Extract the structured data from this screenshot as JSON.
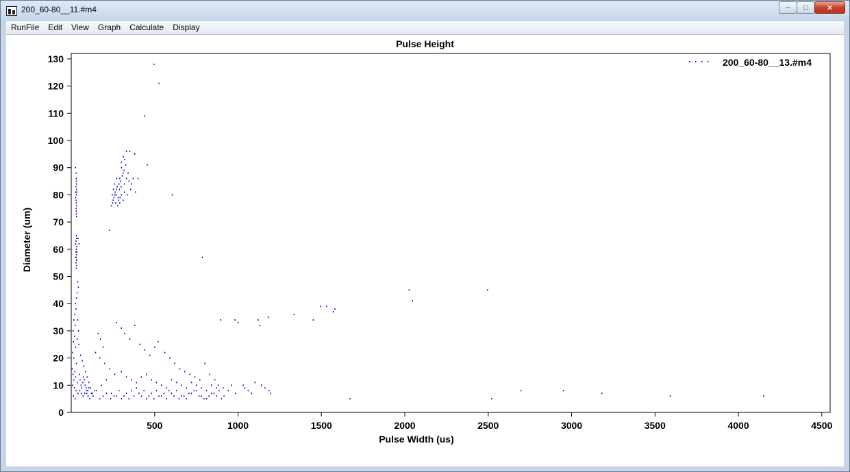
{
  "window": {
    "title": "200_60-80__11.#m4",
    "buttons": {
      "minimize": "–",
      "maximize": "□",
      "close": "✕"
    }
  },
  "menu": [
    "RunFile",
    "Edit",
    "View",
    "Graph",
    "Calculate",
    "Display"
  ],
  "chart_data": {
    "type": "scatter",
    "title": "Pulse Height",
    "xlabel": "Pulse Width (us)",
    "ylabel": "Diameter (um)",
    "xlim": [
      0,
      4550
    ],
    "ylim": [
      0,
      132
    ],
    "xticks": [
      500,
      1000,
      1500,
      2000,
      2500,
      3000,
      3500,
      4000,
      4500
    ],
    "yticks": [
      0,
      10,
      20,
      30,
      40,
      50,
      60,
      70,
      80,
      90,
      100,
      110,
      120,
      130
    ],
    "legend_position": "top-right",
    "grid": false,
    "series": [
      {
        "name": "200_60-80__13.#m4",
        "color": "#0000cc",
        "points": [
          [
            495,
            128
          ],
          [
            525,
            121
          ],
          [
            440,
            109
          ],
          [
            605,
            80
          ],
          [
            785,
            57
          ],
          [
            230,
            67
          ],
          [
            455,
            91
          ],
          [
            330,
            96
          ],
          [
            350,
            96
          ],
          [
            380,
            95
          ],
          [
            400,
            86
          ],
          [
            320,
            93
          ],
          [
            300,
            90
          ],
          [
            310,
            88
          ],
          [
            290,
            86
          ],
          [
            285,
            84
          ],
          [
            270,
            82
          ],
          [
            260,
            80
          ],
          [
            255,
            79
          ],
          [
            250,
            78
          ],
          [
            262,
            81
          ],
          [
            275,
            83
          ],
          [
            268,
            80
          ],
          [
            280,
            79
          ],
          [
            295,
            85
          ],
          [
            305,
            87
          ],
          [
            315,
            89
          ],
          [
            325,
            91
          ],
          [
            340,
            88
          ],
          [
            345,
            85
          ],
          [
            360,
            84
          ],
          [
            355,
            82
          ],
          [
            370,
            86
          ],
          [
            385,
            81
          ],
          [
            300,
            80
          ],
          [
            310,
            78
          ],
          [
            290,
            77
          ],
          [
            278,
            76
          ],
          [
            265,
            77
          ],
          [
            245,
            80
          ],
          [
            252,
            82
          ],
          [
            258,
            84
          ],
          [
            272,
            86
          ],
          [
            288,
            82
          ],
          [
            298,
            83
          ],
          [
            318,
            84
          ],
          [
            330,
            86
          ],
          [
            240,
            76
          ],
          [
            248,
            77
          ],
          [
            282,
            78
          ],
          [
            292,
            79
          ],
          [
            335,
            80
          ],
          [
            318,
            81
          ],
          [
            300,
            92
          ],
          [
            312,
            94
          ],
          [
            25,
            90
          ],
          [
            28,
            88
          ],
          [
            30,
            85
          ],
          [
            32,
            82
          ],
          [
            30,
            80
          ],
          [
            28,
            78
          ],
          [
            32,
            76
          ],
          [
            29,
            74
          ],
          [
            31,
            72
          ],
          [
            27,
            83
          ],
          [
            33,
            81
          ],
          [
            26,
            79
          ],
          [
            30,
            77
          ],
          [
            29,
            86
          ],
          [
            31,
            84
          ],
          [
            28,
            75
          ],
          [
            30,
            73
          ],
          [
            27,
            81
          ],
          [
            30,
            65
          ],
          [
            28,
            63
          ],
          [
            32,
            61
          ],
          [
            29,
            60
          ],
          [
            31,
            58
          ],
          [
            27,
            57
          ],
          [
            30,
            56
          ],
          [
            28,
            55
          ],
          [
            32,
            54
          ],
          [
            26,
            62
          ],
          [
            33,
            59
          ],
          [
            29,
            53
          ],
          [
            31,
            64
          ],
          [
            30,
            57
          ],
          [
            27,
            59
          ],
          [
            32,
            56
          ],
          [
            40,
            64
          ],
          [
            45,
            62
          ],
          [
            38,
            48
          ],
          [
            42,
            46
          ],
          [
            35,
            44
          ],
          [
            30,
            42
          ],
          [
            25,
            40
          ],
          [
            28,
            38
          ],
          [
            20,
            36
          ],
          [
            15,
            34
          ],
          [
            22,
            32
          ],
          [
            10,
            30
          ],
          [
            18,
            28
          ],
          [
            12,
            26
          ],
          [
            25,
            24
          ],
          [
            8,
            22
          ],
          [
            14,
            20
          ],
          [
            30,
            18
          ],
          [
            5,
            16
          ],
          [
            20,
            15
          ],
          [
            10,
            14
          ],
          [
            25,
            13
          ],
          [
            15,
            12
          ],
          [
            35,
            11
          ],
          [
            8,
            10
          ],
          [
            18,
            9
          ],
          [
            28,
            8
          ],
          [
            40,
            7
          ],
          [
            12,
            6
          ],
          [
            22,
            5
          ],
          [
            50,
            8
          ],
          [
            60,
            7
          ],
          [
            70,
            6
          ],
          [
            80,
            7
          ],
          [
            90,
            8
          ],
          [
            100,
            6
          ],
          [
            110,
            5
          ],
          [
            120,
            7
          ],
          [
            130,
            6
          ],
          [
            140,
            8
          ],
          [
            35,
            27
          ],
          [
            45,
            25
          ],
          [
            55,
            21
          ],
          [
            65,
            19
          ],
          [
            75,
            17
          ],
          [
            85,
            15
          ],
          [
            95,
            13
          ],
          [
            105,
            11
          ],
          [
            115,
            9
          ],
          [
            125,
            7
          ],
          [
            38,
            34
          ],
          [
            42,
            30
          ],
          [
            48,
            14
          ],
          [
            52,
            12
          ],
          [
            58,
            10
          ],
          [
            62,
            9
          ],
          [
            68,
            11
          ],
          [
            72,
            13
          ],
          [
            78,
            12
          ],
          [
            82,
            10
          ],
          [
            88,
            9
          ],
          [
            92,
            7
          ],
          [
            98,
            8
          ],
          [
            105,
            9
          ],
          [
            160,
            29
          ],
          [
            175,
            27
          ],
          [
            190,
            24
          ],
          [
            145,
            22
          ],
          [
            170,
            20
          ],
          [
            200,
            18
          ],
          [
            230,
            16
          ],
          [
            260,
            14
          ],
          [
            210,
            12
          ],
          [
            180,
            10
          ],
          [
            150,
            8
          ],
          [
            240,
            7
          ],
          [
            270,
            6
          ],
          [
            300,
            5
          ],
          [
            330,
            7
          ],
          [
            360,
            8
          ],
          [
            390,
            9
          ],
          [
            420,
            6
          ],
          [
            450,
            5
          ],
          [
            480,
            7
          ],
          [
            510,
            8
          ],
          [
            540,
            6
          ],
          [
            570,
            5
          ],
          [
            600,
            7
          ],
          [
            630,
            8
          ],
          [
            660,
            6
          ],
          [
            690,
            5
          ],
          [
            720,
            7
          ],
          [
            750,
            8
          ],
          [
            780,
            6
          ],
          [
            810,
            5
          ],
          [
            840,
            7
          ],
          [
            870,
            6
          ],
          [
            900,
            5
          ],
          [
            270,
            33
          ],
          [
            300,
            31
          ],
          [
            320,
            29
          ],
          [
            350,
            27
          ],
          [
            380,
            32
          ],
          [
            410,
            25
          ],
          [
            440,
            23
          ],
          [
            470,
            21
          ],
          [
            500,
            24
          ],
          [
            520,
            26
          ],
          [
            560,
            22
          ],
          [
            590,
            20
          ],
          [
            620,
            18
          ],
          [
            650,
            16
          ],
          [
            680,
            15
          ],
          [
            710,
            14
          ],
          [
            740,
            13
          ],
          [
            770,
            12
          ],
          [
            800,
            18
          ],
          [
            830,
            14
          ],
          [
            860,
            12
          ],
          [
            880,
            10
          ],
          [
            910,
            9
          ],
          [
            940,
            8
          ],
          [
            300,
            15
          ],
          [
            330,
            13
          ],
          [
            360,
            12
          ],
          [
            390,
            11
          ],
          [
            420,
            13
          ],
          [
            450,
            14
          ],
          [
            480,
            12
          ],
          [
            510,
            11
          ],
          [
            540,
            10
          ],
          [
            570,
            9
          ],
          [
            600,
            12
          ],
          [
            630,
            11
          ],
          [
            660,
            10
          ],
          [
            690,
            9
          ],
          [
            720,
            11
          ],
          [
            750,
            10
          ],
          [
            780,
            9
          ],
          [
            810,
            8
          ],
          [
            840,
            10
          ],
          [
            870,
            9
          ],
          [
            895,
            34
          ],
          [
            980,
            34
          ],
          [
            1000,
            33
          ],
          [
            1120,
            34
          ],
          [
            1130,
            32
          ],
          [
            1180,
            35
          ],
          [
            1335,
            36
          ],
          [
            1450,
            34
          ],
          [
            1495,
            39
          ],
          [
            1530,
            39
          ],
          [
            1570,
            37
          ],
          [
            1580,
            38
          ],
          [
            2025,
            45
          ],
          [
            2045,
            41
          ],
          [
            2495,
            45
          ],
          [
            1030,
            10
          ],
          [
            1040,
            9
          ],
          [
            1060,
            8
          ],
          [
            1080,
            7
          ],
          [
            1100,
            11
          ],
          [
            1140,
            10
          ],
          [
            1160,
            9
          ],
          [
            1185,
            8
          ],
          [
            1195,
            7
          ],
          [
            1670,
            5
          ],
          [
            2520,
            5
          ],
          [
            2695,
            8
          ],
          [
            2950,
            8
          ],
          [
            3180,
            7
          ],
          [
            3590,
            6
          ],
          [
            4150,
            6
          ],
          [
            170,
            5
          ],
          [
            190,
            6
          ],
          [
            210,
            7
          ],
          [
            235,
            5
          ],
          [
            255,
            6
          ],
          [
            285,
            8
          ],
          [
            315,
            6
          ],
          [
            345,
            5
          ],
          [
            375,
            6
          ],
          [
            405,
            7
          ],
          [
            435,
            8
          ],
          [
            465,
            6
          ],
          [
            495,
            5
          ],
          [
            525,
            6
          ],
          [
            555,
            7
          ],
          [
            585,
            8
          ],
          [
            615,
            6
          ],
          [
            645,
            5
          ],
          [
            675,
            6
          ],
          [
            705,
            7
          ],
          [
            735,
            8
          ],
          [
            765,
            6
          ],
          [
            795,
            5
          ],
          [
            825,
            6
          ],
          [
            855,
            7
          ],
          [
            885,
            8
          ],
          [
            915,
            6
          ],
          [
            960,
            10
          ],
          [
            985,
            7
          ]
        ]
      }
    ]
  }
}
